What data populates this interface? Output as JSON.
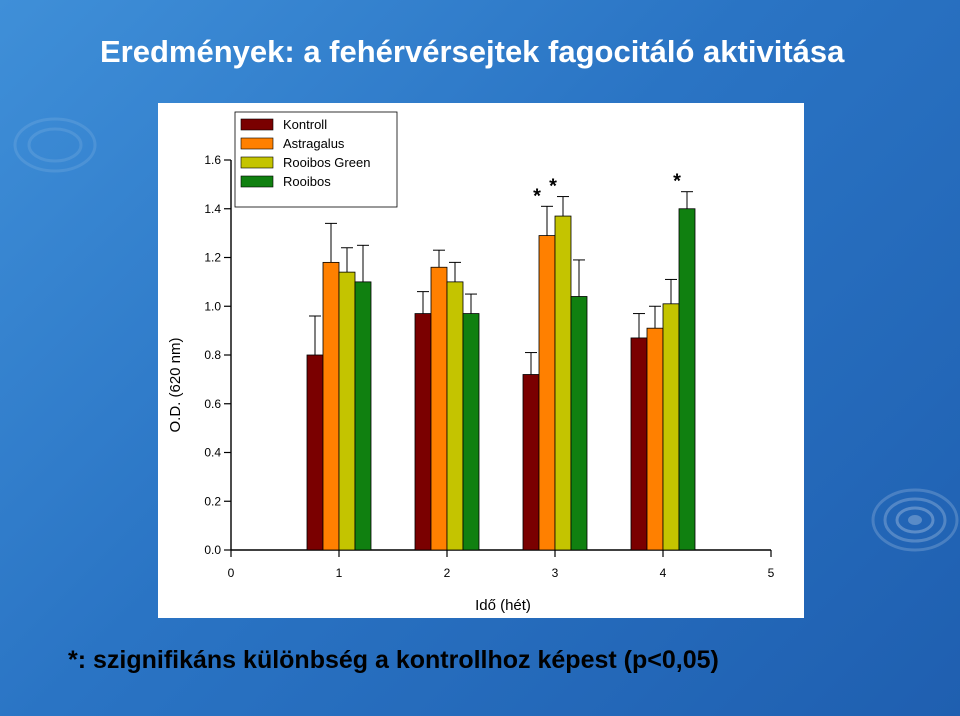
{
  "slide": {
    "title": "Eredmények: a fehérvérsejtek fagocitáló aktivitása",
    "footnote": "*: szignifikáns különbség a kontrollhoz képest (p<0,05)"
  },
  "chart_data": {
    "type": "bar",
    "title": "",
    "xlabel": "Idő (hét)",
    "ylabel": "O.D. (620 nm)",
    "xlim": [
      0,
      5
    ],
    "ylim": [
      0.0,
      1.6
    ],
    "xticks": [
      "0",
      "1",
      "2",
      "3",
      "4",
      "5"
    ],
    "yticks": [
      "0.0",
      "0.2",
      "0.4",
      "0.6",
      "0.8",
      "1.0",
      "1.2",
      "1.4",
      "1.6"
    ],
    "categories": [
      1,
      2,
      3,
      4
    ],
    "legend_position": "top-left",
    "grid": false,
    "series": [
      {
        "name": "Kontroll",
        "color": "#7a0000",
        "values": [
          0.8,
          0.97,
          0.72,
          0.87
        ],
        "errors": [
          0.16,
          0.09,
          0.09,
          0.1
        ]
      },
      {
        "name": "Astragalus",
        "color": "#ff8000",
        "values": [
          1.18,
          1.16,
          1.29,
          0.91
        ],
        "errors": [
          0.16,
          0.07,
          0.12,
          0.09
        ]
      },
      {
        "name": "Rooibos Green",
        "color": "#c4c400",
        "values": [
          1.14,
          1.1,
          1.37,
          1.01
        ],
        "errors": [
          0.1,
          0.08,
          0.08,
          0.1
        ]
      },
      {
        "name": "Rooibos",
        "color": "#108010",
        "values": [
          1.1,
          0.97,
          1.04,
          1.4
        ],
        "errors": [
          0.15,
          0.08,
          0.15,
          0.07
        ]
      }
    ],
    "significance": [
      {
        "category": 3,
        "series": 1,
        "label": "*"
      },
      {
        "category": 3,
        "series": 2,
        "label": "*"
      },
      {
        "category": 4,
        "series": 3,
        "label": "*"
      }
    ]
  }
}
